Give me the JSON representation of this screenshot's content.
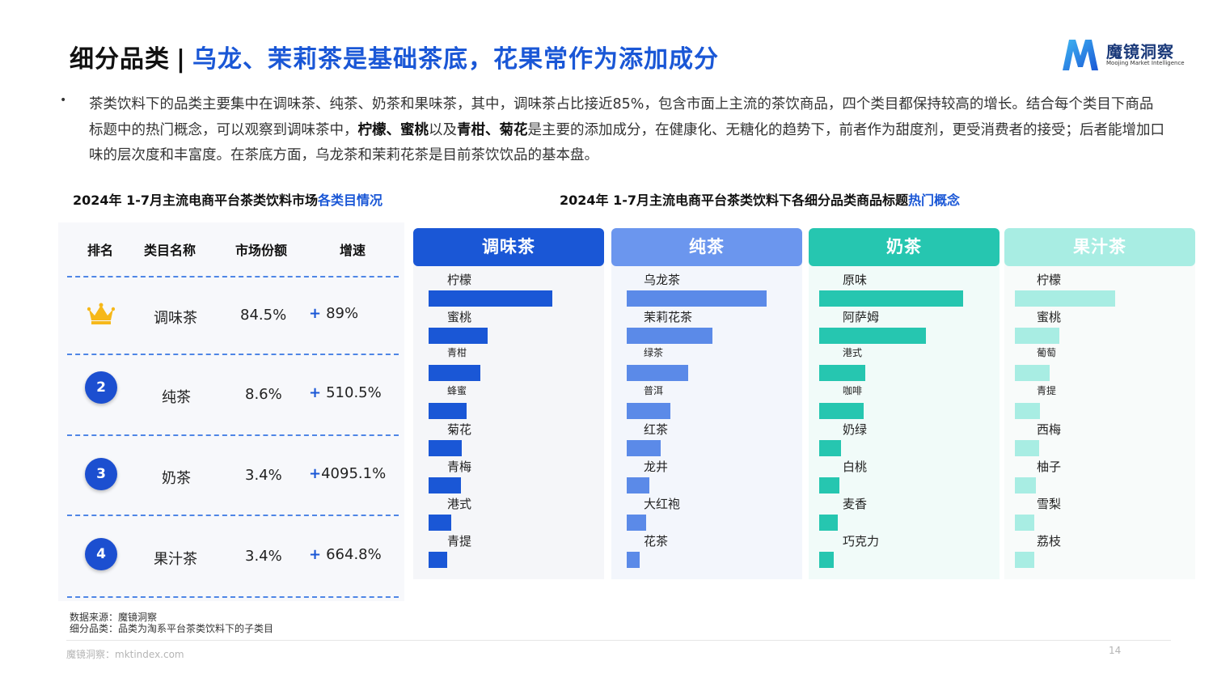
{
  "header": {
    "title_left": "细分品类",
    "separator": "|",
    "title_right": "乌龙、茉莉茶是基础茶底，花果常作为添加成分",
    "brand_cn": "魔镜洞察",
    "brand_en": "Moojing Market Intelligence",
    "brand_color": "#1a57d6"
  },
  "summary": {
    "bullet": "•",
    "p1": "茶类饮料下的品类主要集中在调味茶、纯茶、奶茶和果味茶，其中，调味茶占比接近85%，包含市面上主流的茶饮商品，四个类目都保持较高的增长。结合每个类目下商品标题中的热门概念，可以观察到调味茶中，",
    "b1": "柠檬、蜜桃",
    "p2": "以及",
    "b2": "青柑、菊花",
    "p3": "是主要的添加成分，在健康化、无糖化的趋势下，前者作为甜度剂，更受消费者的接受；后者能增加口味的层次度和丰富度。在茶底方面，乌龙茶和茉莉花茶是目前茶饮饮品的基本盘。"
  },
  "left_table": {
    "subtitle_main": "2024年 1-7月主流电商平台茶类饮料市场",
    "subtitle_hl": "各类目情况",
    "headers": [
      "排名",
      "类目名称",
      "市场份额",
      "增速"
    ],
    "plus": "+",
    "rows": [
      {
        "rank": "1",
        "rank_icon": "crown-icon",
        "name": "调味茶",
        "share": "84.5%",
        "growth": "89%"
      },
      {
        "rank": "2",
        "name": "纯茶",
        "share": "8.6%",
        "growth": "510.5%"
      },
      {
        "rank": "3",
        "name": "奶茶",
        "share": "3.4%",
        "growth": "4095.1%"
      },
      {
        "rank": "4",
        "name": "果汁茶",
        "share": "3.4%",
        "growth": "664.8%"
      }
    ]
  },
  "right_subtitle": {
    "main": "2024年 1-7月主流电商平台茶类饮料下各细分品类商品标题",
    "hl": "热门概念"
  },
  "chart_data": {
    "type": "bar",
    "orientation": "horizontal",
    "value_axis": "none (relative bar length, no printed values)",
    "panels": [
      {
        "name": "调味茶",
        "header_color": "#1a57d6",
        "bar_color": "#1a57d6",
        "bg_color": "#f5f6f9",
        "categories": [
          "柠檬",
          "蜜桃",
          "青柑",
          "蜂蜜",
          "菊花",
          "青梅",
          "港式",
          "青提"
        ],
        "values": [
          100,
          48,
          42,
          31,
          27,
          26,
          18,
          15
        ]
      },
      {
        "name": "纯茶",
        "header_color": "#6b96ee",
        "bar_color": "#5b8ae8",
        "bg_color": "#f3f6fc",
        "categories": [
          "乌龙茶",
          "茉莉花茶",
          "绿茶",
          "普洱",
          "红茶",
          "龙井",
          "大红袍",
          "花茶"
        ],
        "values": [
          100,
          61,
          44,
          31,
          24,
          16,
          14,
          9
        ]
      },
      {
        "name": "奶茶",
        "header_color": "#26c6b0",
        "bar_color": "#26c6b0",
        "bg_color": "#f1fbf9",
        "categories": [
          "原味",
          "阿萨姆",
          "港式",
          "咖啡",
          "奶绿",
          "白桃",
          "麦香",
          "巧克力"
        ],
        "values": [
          100,
          74,
          32,
          31,
          15,
          14,
          13,
          10
        ]
      },
      {
        "name": "果汁茶",
        "header_color": "#a8ede3",
        "bar_color": "#a8ede3",
        "bg_color": "#f8fbfa",
        "categories": [
          "柠檬",
          "蜜桃",
          "葡萄",
          "青提",
          "西梅",
          "柚子",
          "雪梨",
          "荔枝"
        ],
        "values": [
          100,
          44,
          35,
          25,
          24,
          21,
          19,
          19
        ]
      }
    ]
  },
  "footer": {
    "source": "数据来源：魔镜洞察",
    "note": "细分品类：品类为淘系平台茶类饮料下的子类目",
    "site": "魔镜洞察：mktindex.com",
    "page": "14"
  }
}
